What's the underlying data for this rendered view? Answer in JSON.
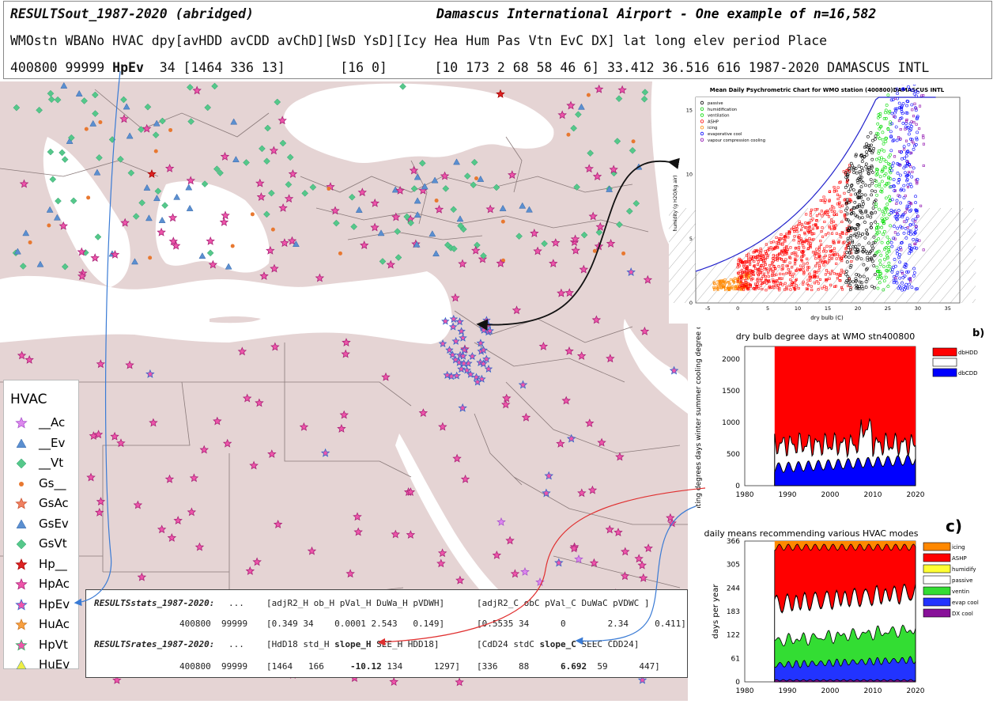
{
  "header": {
    "title_left": "RESULTSout_1987-2020 (abridged)",
    "title_right": "Damascus International Airport - One example of n=16,582",
    "fields": "WMOstn WBANo HVAC dpy[avHDD avCDD avChD][WsD YsD][Icy Hea Hum Pas Vtn EvC DX] lat long elev period Place",
    "record_pre": "400800 99999 ",
    "record_hvac": "HpEv",
    "record_post": "  34 [1464 336 13]       [16 0]      [10 173 2 68 58 46 6] 33.412 36.516 616 1987-2020 DAMASCUS INTL"
  },
  "psychro": {
    "title": "Mean Daily Psychrometric Chart for WMO station (400800)DAMASCUS INTL",
    "xlabel": "dry bulb (C)",
    "ylabel": "humidity (g H2O/kg air)",
    "legend": [
      "passive",
      "humidification",
      "ventilation",
      "ASHP",
      "icing",
      "evaporative cool",
      "vapour compression cooling"
    ],
    "colors": [
      "#000000",
      "#00cc00",
      "#00dd00",
      "#ff0000",
      "#ff8800",
      "#0000ff",
      "#8800aa"
    ],
    "xticks": [
      "-5",
      "0",
      "5",
      "10",
      "15",
      "20",
      "25",
      "30",
      "35"
    ],
    "yticks": [
      "0",
      "5",
      "10",
      "15"
    ]
  },
  "degree_days": {
    "title": "dry bulb degree days at WMO stn400800",
    "ylabel": "< heating degrees days winter  summer cooling degree days >",
    "legend": [
      "dbHDD",
      "",
      "dbCDD"
    ],
    "colors": [
      "#ff0000",
      "#ffffff",
      "#0000ff"
    ],
    "xticks": [
      "1980",
      "1990",
      "2000",
      "2010",
      "2020"
    ],
    "yticks": [
      "0",
      "500",
      "1000",
      "1500",
      "2000"
    ],
    "panel_label": "b)"
  },
  "hvac_modes": {
    "title": "daily means recommending various HVAC modes",
    "ylabel": "days per year",
    "legend": [
      "icing",
      "ASHP",
      "humidify",
      "passive",
      "ventin",
      "evap cool",
      "DX cool"
    ],
    "colors": [
      "#ff8800",
      "#ff0000",
      "#ffff33",
      "#ffffff",
      "#33dd33",
      "#2233ff",
      "#881199"
    ],
    "xticks": [
      "1980",
      "1990",
      "2000",
      "2010",
      "2020"
    ],
    "yticks": [
      "0",
      "61",
      "122",
      "183",
      "244",
      "305",
      "366"
    ],
    "panel_label": "c)"
  },
  "legend": {
    "title": "HVAC",
    "items": [
      {
        "label": "__Ac",
        "icon": "violet-star-icon"
      },
      {
        "label": "__Ev",
        "icon": "blue-triangle-icon"
      },
      {
        "label": "__Vt",
        "icon": "green-diamond-icon"
      },
      {
        "label": "Gs__",
        "icon": "orange-dot-icon"
      },
      {
        "label": "GsAc",
        "icon": "salmon-star-icon"
      },
      {
        "label": "GsEv",
        "icon": "blue-triangle-icon"
      },
      {
        "label": "GsVt",
        "icon": "green-diamond-icon"
      },
      {
        "label": "Hp__",
        "icon": "red-star-icon"
      },
      {
        "label": "HpAc",
        "icon": "pink-star-icon"
      },
      {
        "label": "HpEv",
        "icon": "pink-blue-star-icon"
      },
      {
        "label": "HuAc",
        "icon": "orange-star-icon"
      },
      {
        "label": "HpVt",
        "icon": "pink-green-star-icon"
      },
      {
        "label": "HuEv",
        "icon": "yellow-triangle-icon"
      }
    ]
  },
  "stats": {
    "l1_a": "RESULTSstats_1987-2020:",
    "l1_b": "...",
    "l1_c": "[adjR2_H ob_H pVal_H DuWa_H pVDWH]",
    "l1_d": "[adjR2_C obC pVal_C DuWaC pVDWC ]",
    "l2_a": "400800  99999",
    "l2_b": "[0.349 34    0.0001 2.543   0.149]",
    "l2_c": "[0.5535 34      0        2.34     0.411]",
    "l3_a": "RESULTSrates_1987-2020:",
    "l3_b": "...",
    "l3_c1": "[HdD18 std_H ",
    "l3_c2": "slope_H",
    "l3_c3": " SEE_H HDD18]",
    "l3_d1": "[CdD24 stdC ",
    "l3_d2": "slope_C",
    "l3_d3": " SEEC CDD24]",
    "l4_a": "400800  99999",
    "l4_b1": "[1464   166     ",
    "l4_b2": "-10.12",
    "l4_b3": " 134      1297]",
    "l4_c1": "[336    88      ",
    "l4_c2": "6.692",
    "l4_c3": "  59      447]"
  }
}
